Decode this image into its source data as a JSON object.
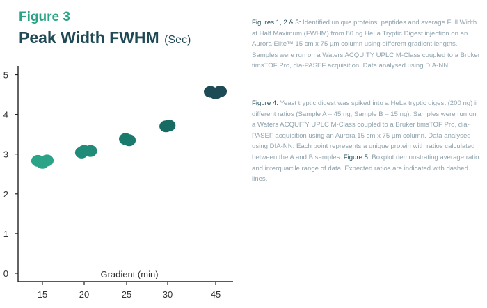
{
  "figure": {
    "label": "Figure 3",
    "title": "Peak Width FWHM",
    "title_unit": "(Sec)"
  },
  "chart_data": {
    "type": "scatter",
    "title": "Peak Width FWHM (Sec)",
    "xlabel": "Gradient (min)",
    "ylabel": "",
    "categories": [
      "15",
      "20",
      "25",
      "30",
      "45"
    ],
    "yticks": [
      0,
      1,
      2,
      3,
      4,
      5
    ],
    "ylim": [
      0,
      5.2
    ],
    "grid": false,
    "legend": "none",
    "series": [
      {
        "points": [
          {
            "x": "15",
            "y": 2.83,
            "offset": -0.22,
            "color": "#2aa386"
          },
          {
            "x": "15",
            "y": 2.78,
            "offset": 0.0,
            "color": "#2aa386"
          },
          {
            "x": "15",
            "y": 2.84,
            "offset": 0.22,
            "color": "#2aa386"
          },
          {
            "x": "20",
            "y": 3.04,
            "offset": -0.12,
            "color": "#1f8b78"
          },
          {
            "x": "20",
            "y": 3.08,
            "offset": 0.0,
            "color": "#1f8b78"
          },
          {
            "x": "20",
            "y": 3.08,
            "offset": 0.3,
            "color": "#1f8b78"
          },
          {
            "x": "25",
            "y": 3.38,
            "offset": -0.05,
            "color": "#1a7a6e"
          },
          {
            "x": "25",
            "y": 3.35,
            "offset": 0.12,
            "color": "#1a7a6e"
          },
          {
            "x": "30",
            "y": 3.7,
            "offset": -0.08,
            "color": "#186b63"
          },
          {
            "x": "30",
            "y": 3.72,
            "offset": 0.06,
            "color": "#186b63"
          },
          {
            "x": "45",
            "y": 4.57,
            "offset": -0.25,
            "color": "#1d4b55"
          },
          {
            "x": "45",
            "y": 4.53,
            "offset": 0.0,
            "color": "#1d4b55"
          },
          {
            "x": "45",
            "y": 4.58,
            "offset": 0.22,
            "color": "#1d4b55"
          }
        ]
      }
    ],
    "colors": {
      "axis": "#222222",
      "text": "#333333"
    }
  },
  "captions": {
    "p1_lead": "Figures 1, 2 & 3:",
    "p1_text": " Identified unique proteins, peptides and average Full Width at Half Maximum (FWHM) from 80 ng HeLa Tryptic Digest injection on an Aurora Elite™ 15 cm x 75 µm column using different gradient lengths. Samples were run on a Waters ACQUITY UPLC M-Class coupled to a Bruker timsTOF Pro, dia-PASEF acquisition. Data analysed using DIA-NN.",
    "p2_lead": "Figure 4:",
    "p2_text": " Yeast tryptic digest was spiked into a HeLa tryptic digest (200 ng) in different ratios (Sample A – 45 ng; Sample B – 15 ng). Samples were run on a Waters ACQUITY UPLC M-Class coupled to a Bruker timsTOF Pro, dia-PASEF acquisition using an Aurora 15 cm x 75 µm column. Data analysed using DIA-NN. Each point represents a unique protein with ratios calculated between the A and B samples.",
    "p2_lead2": "Figure 5:",
    "p2_text2": " Boxplot demonstrating average ratio and interquartile range of data. Expected ratios are indicated with dashed lines."
  }
}
